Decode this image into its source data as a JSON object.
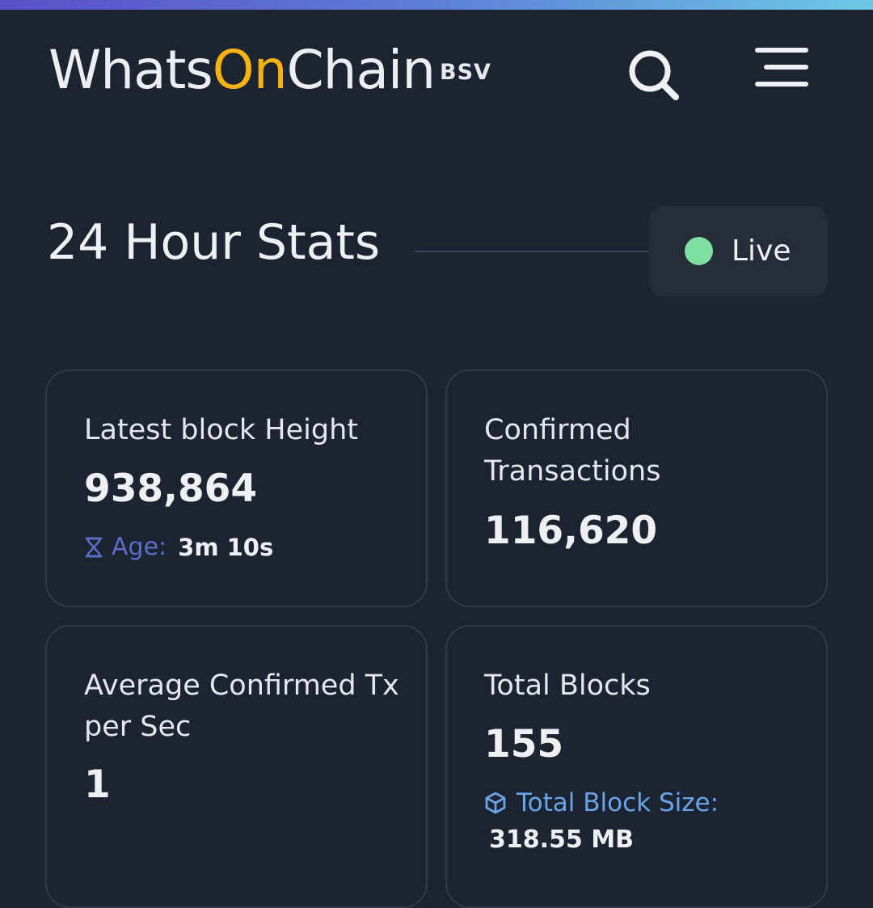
{
  "header": {
    "logo_part1": "Whats",
    "logo_part2": "On",
    "logo_part3": "Chain",
    "network": "BSV",
    "search_icon": "search-icon",
    "menu_icon": "hamburger-menu-icon"
  },
  "stats": {
    "title": "24 Hour Stats",
    "live_label": "Live",
    "live_color": "#7ee0a0"
  },
  "cards": [
    {
      "label": "Latest block Height",
      "value": "938,864",
      "sub_icon": "hourglass-icon",
      "sub_label": "Age:",
      "sub_value": "3m 10s"
    },
    {
      "label": "Confirmed Transactions",
      "value": "116,620"
    },
    {
      "label": "Average Confirmed Tx per Sec",
      "value": "1"
    },
    {
      "label": "Total Blocks",
      "value": "155",
      "sub_icon": "cube-icon",
      "sub_label": "Total Block Size:",
      "sub_value": "318.55 MB"
    }
  ],
  "colors": {
    "background": "#1c2331",
    "accent_orange": "#f5b313",
    "age_label": "#5b6dc7",
    "size_label": "#6aa4e8",
    "card_border": "#323a49"
  }
}
